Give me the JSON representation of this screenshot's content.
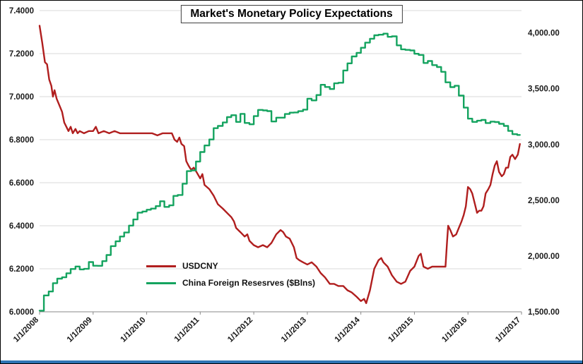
{
  "window": {
    "background": "#ffffff",
    "border_color": "#000000",
    "bottom_bar_color": "#2e74b5",
    "grid_color": "#d9d9d9",
    "axis_color": "#8a8a8a"
  },
  "chart_data": {
    "type": "line",
    "title": "Market's Monetary Policy Expectations",
    "grid": true,
    "legend_position": "inside-bottom-left",
    "x_axis": {
      "labels": [
        "1/1/2008",
        "1/1/2009",
        "1/1/2010",
        "1/1/2011",
        "1/1/2012",
        "1/1/2013",
        "1/1/2014",
        "1/1/2015",
        "1/1/2016",
        "1/1/2017"
      ],
      "values": [
        2008,
        2009,
        2010,
        2011,
        2012,
        2013,
        2014,
        2015,
        2016,
        2017
      ]
    },
    "left_axis": {
      "min": 6.0,
      "max": 7.4,
      "tick_values": [
        7.4,
        7.2,
        7.0,
        6.8,
        6.6,
        6.4,
        6.2,
        6.0
      ],
      "tick_labels": [
        "7.4000",
        "7.2000",
        "7.0000",
        "6.8000",
        "6.6000",
        "6.4000",
        "6.2000",
        "6.0000"
      ]
    },
    "right_axis": {
      "min": 1500,
      "max": 4200,
      "tick_values": [
        4000,
        3500,
        3000,
        2500,
        2000,
        1500
      ],
      "tick_labels": [
        "4,000.00",
        "3,500.00",
        "3,000.00",
        "2,500.00",
        "2,000.00",
        "1,500.00"
      ]
    },
    "series": [
      {
        "name": "USDCNY",
        "color": "#b01e1e",
        "axis": "left",
        "step": false,
        "points": [
          [
            2008.0,
            7.33
          ],
          [
            2008.05,
            7.25
          ],
          [
            2008.1,
            7.16
          ],
          [
            2008.14,
            7.15
          ],
          [
            2008.18,
            7.08
          ],
          [
            2008.22,
            7.05
          ],
          [
            2008.25,
            7.0
          ],
          [
            2008.28,
            7.03
          ],
          [
            2008.32,
            6.99
          ],
          [
            2008.37,
            6.96
          ],
          [
            2008.42,
            6.93
          ],
          [
            2008.46,
            6.88
          ],
          [
            2008.5,
            6.86
          ],
          [
            2008.54,
            6.84
          ],
          [
            2008.58,
            6.86
          ],
          [
            2008.62,
            6.83
          ],
          [
            2008.67,
            6.85
          ],
          [
            2008.71,
            6.83
          ],
          [
            2008.75,
            6.84
          ],
          [
            2008.83,
            6.83
          ],
          [
            2008.92,
            6.84
          ],
          [
            2009.0,
            6.84
          ],
          [
            2009.05,
            6.86
          ],
          [
            2009.1,
            6.83
          ],
          [
            2009.2,
            6.84
          ],
          [
            2009.3,
            6.83
          ],
          [
            2009.4,
            6.84
          ],
          [
            2009.5,
            6.83
          ],
          [
            2009.6,
            6.83
          ],
          [
            2009.7,
            6.83
          ],
          [
            2009.8,
            6.83
          ],
          [
            2009.9,
            6.83
          ],
          [
            2010.0,
            6.83
          ],
          [
            2010.1,
            6.83
          ],
          [
            2010.2,
            6.82
          ],
          [
            2010.3,
            6.83
          ],
          [
            2010.4,
            6.83
          ],
          [
            2010.47,
            6.83
          ],
          [
            2010.52,
            6.8
          ],
          [
            2010.57,
            6.79
          ],
          [
            2010.61,
            6.81
          ],
          [
            2010.65,
            6.78
          ],
          [
            2010.7,
            6.77
          ],
          [
            2010.74,
            6.7
          ],
          [
            2010.78,
            6.68
          ],
          [
            2010.83,
            6.66
          ],
          [
            2010.88,
            6.67
          ],
          [
            2010.93,
            6.65
          ],
          [
            2011.0,
            6.62
          ],
          [
            2011.04,
            6.64
          ],
          [
            2011.08,
            6.59
          ],
          [
            2011.17,
            6.57
          ],
          [
            2011.25,
            6.54
          ],
          [
            2011.33,
            6.5
          ],
          [
            2011.42,
            6.48
          ],
          [
            2011.5,
            6.46
          ],
          [
            2011.58,
            6.44
          ],
          [
            2011.63,
            6.42
          ],
          [
            2011.67,
            6.39
          ],
          [
            2011.75,
            6.37
          ],
          [
            2011.83,
            6.35
          ],
          [
            2011.88,
            6.36
          ],
          [
            2011.92,
            6.33
          ],
          [
            2012.0,
            6.31
          ],
          [
            2012.08,
            6.3
          ],
          [
            2012.17,
            6.31
          ],
          [
            2012.25,
            6.3
          ],
          [
            2012.33,
            6.32
          ],
          [
            2012.42,
            6.36
          ],
          [
            2012.5,
            6.38
          ],
          [
            2012.55,
            6.37
          ],
          [
            2012.6,
            6.35
          ],
          [
            2012.67,
            6.34
          ],
          [
            2012.75,
            6.3
          ],
          [
            2012.8,
            6.25
          ],
          [
            2012.85,
            6.24
          ],
          [
            2012.92,
            6.23
          ],
          [
            2013.0,
            6.22
          ],
          [
            2013.08,
            6.23
          ],
          [
            2013.17,
            6.21
          ],
          [
            2013.25,
            6.18
          ],
          [
            2013.33,
            6.16
          ],
          [
            2013.42,
            6.13
          ],
          [
            2013.5,
            6.13
          ],
          [
            2013.58,
            6.12
          ],
          [
            2013.67,
            6.12
          ],
          [
            2013.75,
            6.1
          ],
          [
            2013.83,
            6.09
          ],
          [
            2013.92,
            6.07
          ],
          [
            2014.0,
            6.05
          ],
          [
            2014.06,
            6.06
          ],
          [
            2014.1,
            6.04
          ],
          [
            2014.17,
            6.1
          ],
          [
            2014.25,
            6.2
          ],
          [
            2014.33,
            6.24
          ],
          [
            2014.38,
            6.25
          ],
          [
            2014.42,
            6.23
          ],
          [
            2014.5,
            6.21
          ],
          [
            2014.58,
            6.17
          ],
          [
            2014.67,
            6.14
          ],
          [
            2014.75,
            6.13
          ],
          [
            2014.83,
            6.14
          ],
          [
            2014.92,
            6.19
          ],
          [
            2015.0,
            6.21
          ],
          [
            2015.08,
            6.26
          ],
          [
            2015.12,
            6.27
          ],
          [
            2015.17,
            6.21
          ],
          [
            2015.25,
            6.2
          ],
          [
            2015.33,
            6.21
          ],
          [
            2015.42,
            6.21
          ],
          [
            2015.5,
            6.21
          ],
          [
            2015.58,
            6.21
          ],
          [
            2015.61,
            6.33
          ],
          [
            2015.63,
            6.4
          ],
          [
            2015.67,
            6.38
          ],
          [
            2015.72,
            6.35
          ],
          [
            2015.78,
            6.36
          ],
          [
            2015.83,
            6.39
          ],
          [
            2015.88,
            6.42
          ],
          [
            2015.92,
            6.45
          ],
          [
            2015.96,
            6.49
          ],
          [
            2016.0,
            6.58
          ],
          [
            2016.04,
            6.57
          ],
          [
            2016.08,
            6.55
          ],
          [
            2016.13,
            6.5
          ],
          [
            2016.17,
            6.46
          ],
          [
            2016.21,
            6.47
          ],
          [
            2016.25,
            6.47
          ],
          [
            2016.29,
            6.49
          ],
          [
            2016.33,
            6.55
          ],
          [
            2016.38,
            6.57
          ],
          [
            2016.42,
            6.59
          ],
          [
            2016.46,
            6.64
          ],
          [
            2016.5,
            6.68
          ],
          [
            2016.54,
            6.7
          ],
          [
            2016.58,
            6.65
          ],
          [
            2016.63,
            6.63
          ],
          [
            2016.67,
            6.64
          ],
          [
            2016.71,
            6.67
          ],
          [
            2016.75,
            6.67
          ],
          [
            2016.79,
            6.72
          ],
          [
            2016.83,
            6.73
          ],
          [
            2016.88,
            6.71
          ],
          [
            2016.93,
            6.73
          ],
          [
            2016.97,
            6.78
          ]
        ]
      },
      {
        "name": "China Foreign Resesrves ($Blns)",
        "color": "#14a35f",
        "axis": "right",
        "step": true,
        "points": [
          [
            2008.0,
            1510
          ],
          [
            2008.08,
            1647
          ],
          [
            2008.17,
            1682
          ],
          [
            2008.25,
            1757
          ],
          [
            2008.33,
            1797
          ],
          [
            2008.42,
            1809
          ],
          [
            2008.5,
            1845
          ],
          [
            2008.58,
            1884
          ],
          [
            2008.67,
            1906
          ],
          [
            2008.75,
            1880
          ],
          [
            2008.83,
            1885
          ],
          [
            2008.92,
            1946
          ],
          [
            2009.0,
            1913
          ],
          [
            2009.08,
            1912
          ],
          [
            2009.17,
            1954
          ],
          [
            2009.25,
            2009
          ],
          [
            2009.33,
            2089
          ],
          [
            2009.42,
            2132
          ],
          [
            2009.5,
            2175
          ],
          [
            2009.58,
            2211
          ],
          [
            2009.67,
            2273
          ],
          [
            2009.75,
            2328
          ],
          [
            2009.83,
            2389
          ],
          [
            2009.92,
            2399
          ],
          [
            2010.0,
            2415
          ],
          [
            2010.08,
            2425
          ],
          [
            2010.17,
            2447
          ],
          [
            2010.25,
            2491
          ],
          [
            2010.33,
            2440
          ],
          [
            2010.42,
            2454
          ],
          [
            2010.5,
            2539
          ],
          [
            2010.58,
            2547
          ],
          [
            2010.67,
            2648
          ],
          [
            2010.75,
            2761
          ],
          [
            2010.83,
            2768
          ],
          [
            2010.92,
            2847
          ],
          [
            2011.0,
            2932
          ],
          [
            2011.08,
            2991
          ],
          [
            2011.17,
            3045
          ],
          [
            2011.25,
            3146
          ],
          [
            2011.33,
            3166
          ],
          [
            2011.42,
            3197
          ],
          [
            2011.5,
            3245
          ],
          [
            2011.58,
            3262
          ],
          [
            2011.67,
            3202
          ],
          [
            2011.75,
            3274
          ],
          [
            2011.83,
            3193
          ],
          [
            2011.92,
            3181
          ],
          [
            2012.0,
            3254
          ],
          [
            2012.08,
            3310
          ],
          [
            2012.17,
            3305
          ],
          [
            2012.25,
            3299
          ],
          [
            2012.33,
            3206
          ],
          [
            2012.42,
            3240
          ],
          [
            2012.5,
            3240
          ],
          [
            2012.58,
            3273
          ],
          [
            2012.67,
            3285
          ],
          [
            2012.75,
            3287
          ],
          [
            2012.83,
            3298
          ],
          [
            2012.92,
            3312
          ],
          [
            2013.0,
            3410
          ],
          [
            2013.08,
            3395
          ],
          [
            2013.17,
            3443
          ],
          [
            2013.25,
            3535
          ],
          [
            2013.33,
            3515
          ],
          [
            2013.42,
            3497
          ],
          [
            2013.5,
            3548
          ],
          [
            2013.58,
            3553
          ],
          [
            2013.67,
            3663
          ],
          [
            2013.75,
            3727
          ],
          [
            2013.83,
            3789
          ],
          [
            2013.92,
            3821
          ],
          [
            2014.0,
            3867
          ],
          [
            2014.08,
            3913
          ],
          [
            2014.17,
            3948
          ],
          [
            2014.25,
            3979
          ],
          [
            2014.33,
            3984
          ],
          [
            2014.42,
            3993
          ],
          [
            2014.5,
            3965
          ],
          [
            2014.58,
            3969
          ],
          [
            2014.67,
            3888
          ],
          [
            2014.75,
            3853
          ],
          [
            2014.83,
            3848
          ],
          [
            2014.92,
            3843
          ],
          [
            2015.0,
            3813
          ],
          [
            2015.08,
            3802
          ],
          [
            2015.17,
            3730
          ],
          [
            2015.25,
            3748
          ],
          [
            2015.33,
            3711
          ],
          [
            2015.42,
            3694
          ],
          [
            2015.5,
            3651
          ],
          [
            2015.58,
            3557
          ],
          [
            2015.67,
            3514
          ],
          [
            2015.75,
            3526
          ],
          [
            2015.83,
            3438
          ],
          [
            2015.92,
            3330
          ],
          [
            2016.0,
            3231
          ],
          [
            2016.08,
            3202
          ],
          [
            2016.17,
            3213
          ],
          [
            2016.25,
            3220
          ],
          [
            2016.33,
            3192
          ],
          [
            2016.42,
            3205
          ],
          [
            2016.5,
            3201
          ],
          [
            2016.58,
            3185
          ],
          [
            2016.67,
            3166
          ],
          [
            2016.75,
            3121
          ],
          [
            2016.83,
            3092
          ],
          [
            2016.92,
            3085
          ],
          [
            2016.97,
            3085
          ]
        ]
      }
    ]
  }
}
